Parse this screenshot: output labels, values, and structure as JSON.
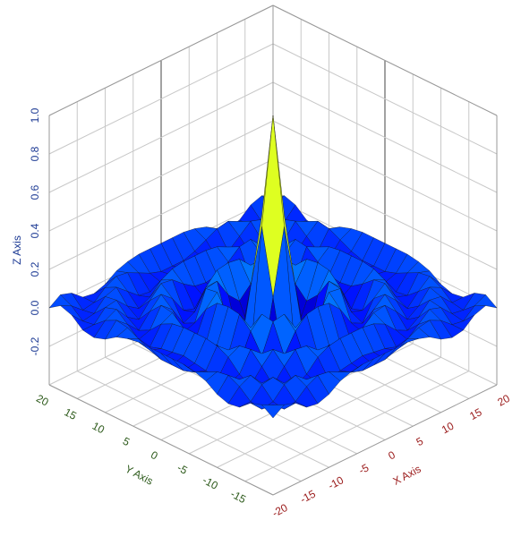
{
  "chart_data": {
    "type": "surface",
    "x_label": "X Axis",
    "y_label": "Y Axis",
    "z_label": "Z Axis",
    "x": [
      -20,
      -18,
      -16,
      -14,
      -12,
      -10,
      -8,
      -6,
      -4,
      -2,
      0,
      2,
      4,
      6,
      8,
      10,
      12,
      14,
      16,
      18,
      20
    ],
    "y": [
      -20,
      -18,
      -16,
      -14,
      -12,
      -10,
      -8,
      -6,
      -4,
      -2,
      0,
      2,
      4,
      6,
      8,
      10,
      12,
      14,
      16,
      18,
      20
    ],
    "z": [
      [
        0,
        0.04,
        0.02,
        -0.03,
        -0.04,
        -0.02,
        0.02,
        0.04,
        0.05,
        0.05,
        0.05,
        0.05,
        0.05,
        0.04,
        0.02,
        -0.02,
        -0.04,
        -0.03,
        0.02,
        0.04,
        0
      ],
      [
        0.04,
        0.01,
        -0.04,
        -0.03,
        0.02,
        0.05,
        0.04,
        0.01,
        -0.02,
        -0.04,
        -0.04,
        -0.04,
        -0.02,
        0.01,
        0.04,
        0.05,
        0.02,
        -0.03,
        -0.04,
        0.01,
        0.04
      ],
      [
        0.02,
        -0.04,
        -0.03,
        0.03,
        0.05,
        0,
        -0.05,
        -0.06,
        -0.04,
        -0.03,
        -0.02,
        -0.03,
        -0.04,
        -0.06,
        -0.05,
        0,
        0.05,
        0.03,
        -0.03,
        -0.04,
        0.02
      ],
      [
        -0.03,
        -0.03,
        0.03,
        0.04,
        -0.02,
        -0.06,
        -0.03,
        0.03,
        0.06,
        0.07,
        0.07,
        0.07,
        0.06,
        0.03,
        -0.03,
        -0.06,
        -0.02,
        0.04,
        0.03,
        -0.03,
        -0.03
      ],
      [
        -0.04,
        0.02,
        0.05,
        -0.02,
        -0.06,
        0.01,
        0.07,
        0.06,
        0.01,
        -0.03,
        -0.04,
        -0.03,
        0.01,
        0.06,
        0.07,
        0.01,
        -0.06,
        -0.02,
        0.05,
        0.02,
        -0.04
      ],
      [
        -0.02,
        0.05,
        0,
        -0.06,
        0.01,
        0.07,
        0.02,
        -0.07,
        -0.09,
        -0.07,
        -0.05,
        -0.07,
        -0.09,
        -0.07,
        0.02,
        0.07,
        0.01,
        -0.06,
        0,
        0.05,
        -0.02
      ],
      [
        0.02,
        0.04,
        -0.05,
        -0.03,
        0.07,
        0.02,
        -0.08,
        -0.05,
        0.05,
        0.11,
        0.12,
        0.11,
        0.05,
        -0.05,
        -0.08,
        0.02,
        0.07,
        -0.03,
        -0.05,
        0.04,
        0.02
      ],
      [
        0.04,
        0.01,
        -0.06,
        0.03,
        0.06,
        -0.07,
        -0.05,
        0.1,
        0.11,
        0.01,
        -0.05,
        0.01,
        0.11,
        0.1,
        -0.05,
        -0.07,
        0.06,
        0.03,
        -0.06,
        0.01,
        0.04
      ],
      [
        0.05,
        -0.02,
        -0.04,
        0.06,
        0.01,
        -0.09,
        0.05,
        0.11,
        -0.1,
        -0.22,
        -0.19,
        -0.22,
        -0.1,
        0.11,
        0.05,
        -0.09,
        0.01,
        0.06,
        -0.04,
        -0.02,
        0.05
      ],
      [
        0.05,
        -0.04,
        -0.03,
        0.07,
        -0.03,
        -0.07,
        0.11,
        0.01,
        -0.22,
        0.11,
        0.45,
        0.11,
        -0.22,
        0.01,
        0.11,
        -0.07,
        -0.03,
        0.07,
        -0.03,
        -0.04,
        0.05
      ],
      [
        0.05,
        -0.04,
        -0.02,
        0.07,
        -0.04,
        -0.05,
        0.12,
        -0.05,
        -0.19,
        0.45,
        1,
        0.45,
        -0.19,
        -0.05,
        0.12,
        -0.05,
        -0.04,
        0.07,
        -0.02,
        -0.04,
        0.05
      ],
      [
        0.05,
        -0.04,
        -0.03,
        0.07,
        -0.03,
        -0.07,
        0.11,
        0.01,
        -0.22,
        0.11,
        0.45,
        0.11,
        -0.22,
        0.01,
        0.11,
        -0.07,
        -0.03,
        0.07,
        -0.03,
        -0.04,
        0.05
      ],
      [
        0.05,
        -0.02,
        -0.04,
        0.06,
        0.01,
        -0.09,
        0.05,
        0.11,
        -0.1,
        -0.22,
        -0.19,
        -0.22,
        -0.1,
        0.11,
        0.05,
        -0.09,
        0.01,
        0.06,
        -0.04,
        -0.02,
        0.05
      ],
      [
        0.04,
        0.01,
        -0.06,
        0.03,
        0.06,
        -0.07,
        -0.05,
        0.1,
        0.11,
        0.01,
        -0.05,
        0.01,
        0.11,
        0.1,
        -0.05,
        -0.07,
        0.06,
        0.03,
        -0.06,
        0.01,
        0.04
      ],
      [
        0.02,
        0.04,
        -0.05,
        -0.03,
        0.07,
        0.02,
        -0.08,
        -0.05,
        0.05,
        0.11,
        0.12,
        0.11,
        0.05,
        -0.05,
        -0.08,
        0.02,
        0.07,
        -0.03,
        -0.05,
        0.04,
        0.02
      ],
      [
        -0.02,
        0.05,
        0,
        -0.06,
        0.01,
        0.07,
        0.02,
        -0.07,
        -0.09,
        -0.07,
        -0.05,
        -0.07,
        -0.09,
        -0.07,
        0.02,
        0.07,
        0.01,
        -0.06,
        0,
        0.05,
        -0.02
      ],
      [
        -0.04,
        0.02,
        0.05,
        -0.02,
        -0.06,
        0.01,
        0.07,
        0.06,
        0.01,
        -0.03,
        -0.04,
        -0.03,
        0.01,
        0.06,
        0.07,
        0.01,
        -0.06,
        -0.02,
        0.05,
        0.02,
        -0.04
      ],
      [
        -0.03,
        -0.03,
        0.03,
        0.04,
        -0.02,
        -0.06,
        -0.03,
        0.03,
        0.06,
        0.07,
        0.07,
        0.07,
        0.06,
        0.03,
        -0.03,
        -0.06,
        -0.02,
        0.04,
        0.03,
        -0.03,
        -0.03
      ],
      [
        0.02,
        -0.04,
        -0.03,
        0.03,
        0.05,
        0,
        -0.05,
        -0.06,
        -0.04,
        -0.03,
        -0.02,
        -0.03,
        -0.04,
        -0.06,
        -0.05,
        0,
        0.05,
        0.03,
        -0.03,
        -0.04,
        0.02
      ],
      [
        0.04,
        0.01,
        -0.04,
        -0.03,
        0.02,
        0.05,
        0.04,
        0.01,
        -0.02,
        -0.04,
        -0.04,
        -0.04,
        -0.02,
        0.01,
        0.04,
        0.05,
        0.02,
        -0.03,
        -0.04,
        0.01,
        0.04
      ],
      [
        0,
        0.04,
        0.02,
        -0.03,
        -0.04,
        -0.02,
        0.02,
        0.04,
        0.05,
        0.05,
        0.05,
        0.05,
        0.05,
        0.04,
        0.02,
        -0.02,
        -0.04,
        -0.03,
        0.02,
        0.04,
        0
      ]
    ],
    "xlim": [
      -20,
      20
    ],
    "ylim": [
      -20,
      20
    ],
    "zlim": [
      -0.4,
      1.0
    ],
    "xticks": [
      -20,
      -15,
      -10,
      -5,
      0,
      5,
      10,
      15,
      20
    ],
    "yticks": [
      -15,
      -10,
      -5,
      0,
      5,
      10,
      15,
      20
    ],
    "zticks": [
      -0.2,
      {
        "value": 0,
        "label": "0.0"
      },
      0.2,
      0.4,
      0.6,
      0.8,
      {
        "value": 1,
        "label": "1.0"
      }
    ],
    "colormap": "jet",
    "grid": true
  }
}
